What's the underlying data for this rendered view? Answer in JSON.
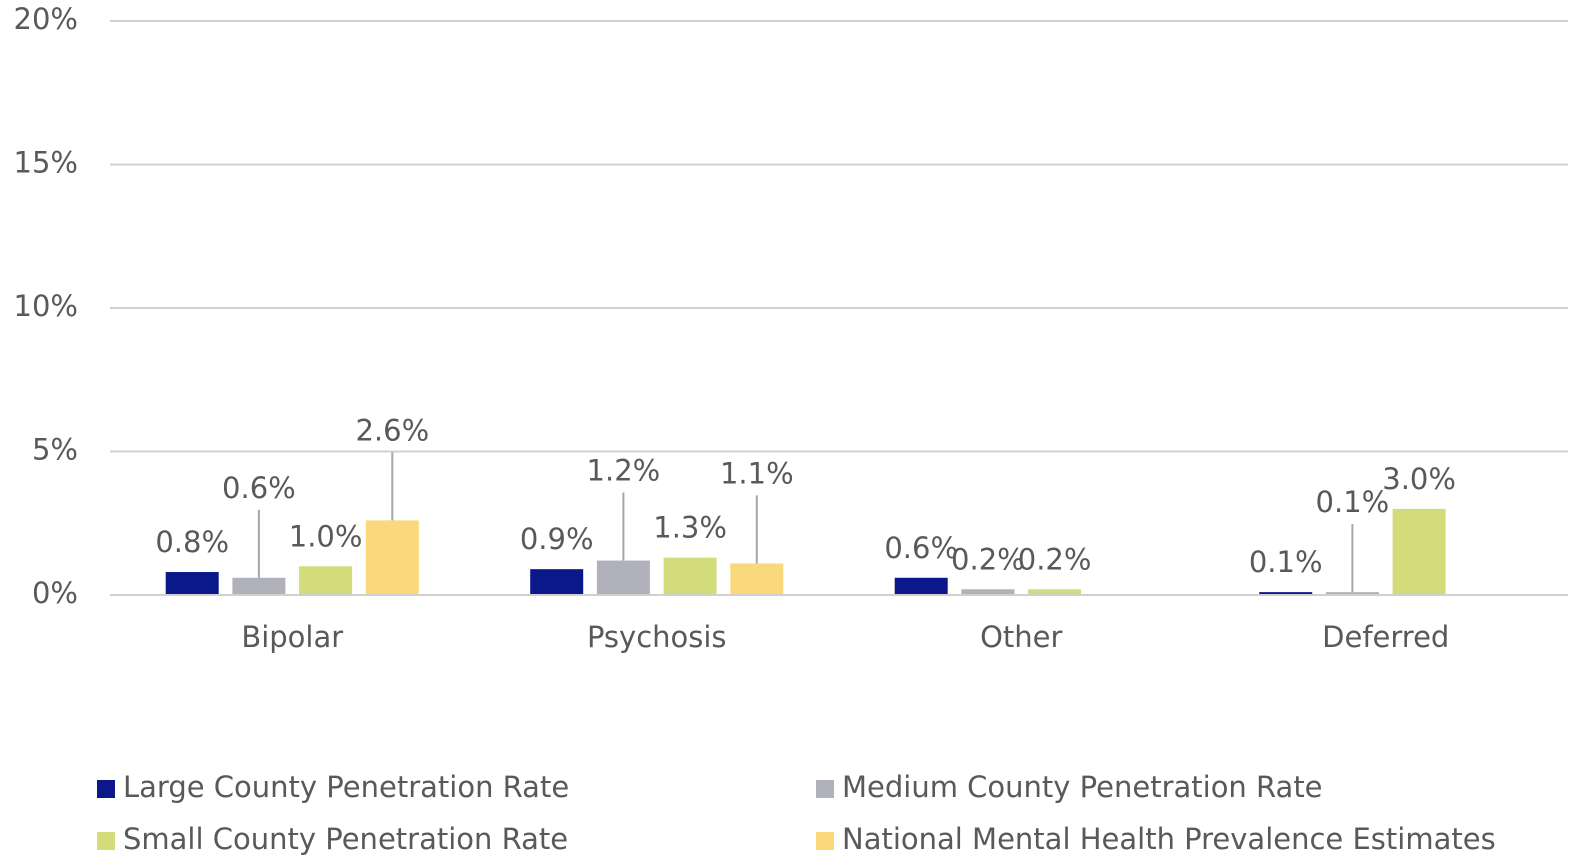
{
  "chart_data": {
    "type": "bar",
    "categories": [
      "Bipolar",
      "Psychosis",
      "Other",
      "Deferred"
    ],
    "series": [
      {
        "name": "Large County Penetration Rate",
        "color": "#0a1889",
        "values": [
          0.8,
          0.9,
          0.6,
          0.1
        ],
        "value_labels": [
          "0.8%",
          "0.9%",
          "0.6%",
          "0.1%"
        ]
      },
      {
        "name": "Medium County Penetration Rate",
        "color": "#b1b1bb",
        "values": [
          0.6,
          1.2,
          0.2,
          0.1
        ],
        "value_labels": [
          "0.6%",
          "1.2%",
          "0.2%",
          "0.1%"
        ]
      },
      {
        "name": "Small County Penetration Rate",
        "color": "#d3dc7a",
        "values": [
          1.0,
          1.3,
          0.2,
          3.0
        ],
        "value_labels": [
          "1.0%",
          "1.3%",
          "0.2%",
          "3.0%"
        ]
      },
      {
        "name": "National Mental Health Prevalence Estimates",
        "color": "#fad97d",
        "values": [
          2.6,
          1.1,
          null,
          null
        ],
        "value_labels": [
          "2.6%",
          "1.1%",
          null,
          null
        ]
      }
    ],
    "ylim": [
      0,
      20
    ],
    "yticks": [
      {
        "value": 0,
        "label": "0%"
      },
      {
        "value": 5,
        "label": "5%"
      },
      {
        "value": 10,
        "label": "10%"
      },
      {
        "value": 15,
        "label": "15%"
      },
      {
        "value": 20,
        "label": "20%"
      }
    ],
    "grid": true
  }
}
